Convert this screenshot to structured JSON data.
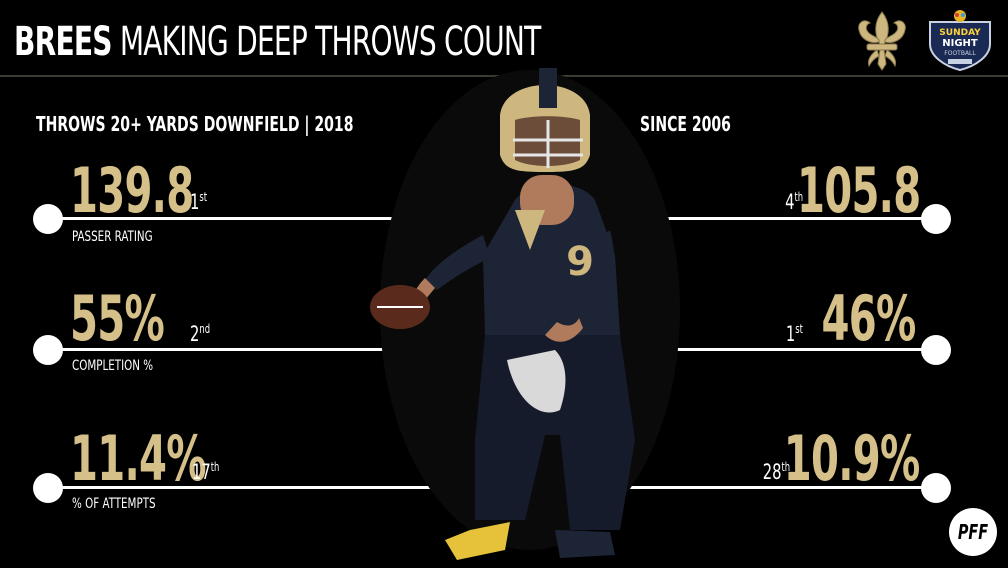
{
  "header": {
    "title_bold": "BREES",
    "title_light": "MAKING DEEP THROWS COUNT",
    "saints_logo": "fleur-de-lis-icon",
    "broadcast_logo": "sunday-night-football-logo",
    "broadcast_logo_text": [
      "SUNDAY",
      "NIGHT",
      "FOOTBALL"
    ]
  },
  "left_section": {
    "label": "THROWS 20+ YARDS DOWNFIELD | 2018"
  },
  "right_section": {
    "label": "SINCE 2006"
  },
  "stats": [
    {
      "label": "PASSER RATING",
      "season_value": "139.8",
      "season_rank_num": "1",
      "season_rank_suffix": "st",
      "career_value": "105.8",
      "career_rank_num": "4",
      "career_rank_suffix": "th"
    },
    {
      "label": "COMPLETION %",
      "season_value": "55%",
      "season_rank_num": "2",
      "season_rank_suffix": "nd",
      "career_value": "46%",
      "career_rank_num": "1",
      "career_rank_suffix": "st"
    },
    {
      "label": "% OF ATTEMPTS",
      "season_value": "11.4%",
      "season_rank_num": "17",
      "season_rank_suffix": "th",
      "career_value": "10.9%",
      "career_rank_num": "28",
      "career_rank_suffix": "th"
    }
  ],
  "player_image": "quarterback-passing-photo",
  "footer": {
    "brand": "PFF"
  },
  "colors": {
    "background": "#000000",
    "accent_gold": "#d5c089",
    "text": "#ffffff",
    "saints_navy": "#1d2436"
  }
}
